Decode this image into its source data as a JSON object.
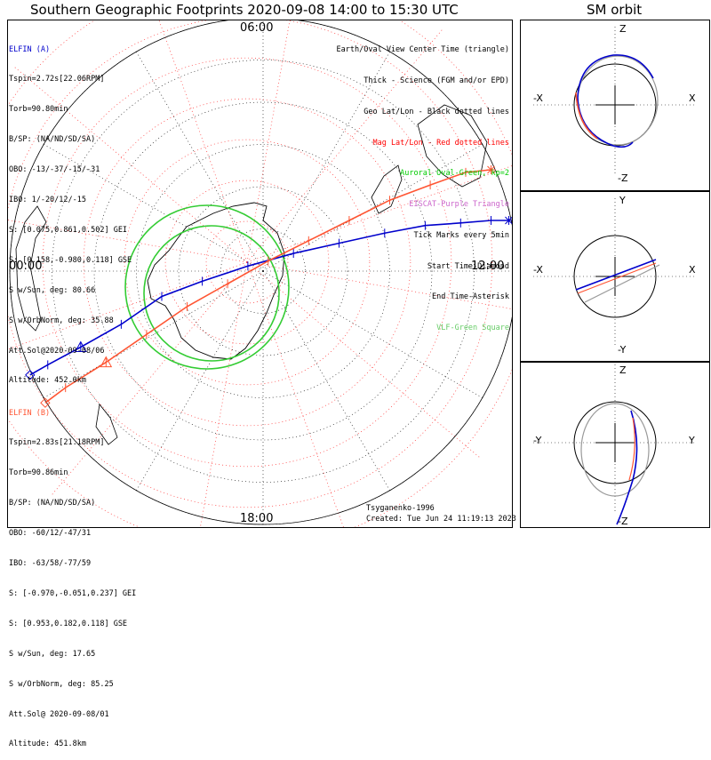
{
  "header": {
    "title": "Southern Geographic Footprints 2020-09-08 14:00 to 15:30 UTC",
    "sm_title": "SM orbit"
  },
  "map": {
    "hour_labels": [
      "06:00",
      "00:00",
      "12:00",
      "18:00"
    ],
    "model": "Tsyganenko-1996",
    "created": "Created: Tue Jun 24 11:19:13 2023"
  },
  "legend": {
    "lines": [
      {
        "text": "Earth/Oval View Center Time (triangle)",
        "color": "#000000"
      },
      {
        "text": "Thick - Science (FGM and/or EPD)",
        "color": "#000000"
      },
      {
        "text": "Geo Lat/Lon - Black dotted lines",
        "color": "#000000"
      },
      {
        "text": "Mag Lat/Lon - Red dotted lines",
        "color": "#ff0000"
      },
      {
        "text": "Auroral Oval-Green, kp=2",
        "color": "#00cc00"
      },
      {
        "text": "EISCAT-Purple Triangle",
        "color": "#cc66cc"
      },
      {
        "text": "Tick Marks every 5min",
        "color": "#000000"
      },
      {
        "text": "Start Time-Diamond",
        "color": "#000000"
      },
      {
        "text": "End Time-Asterisk",
        "color": "#000000"
      },
      {
        "text": "VLF-Green Square",
        "color": "#66cc66"
      }
    ]
  },
  "elfin_a": {
    "name": "ELFIN (A)",
    "color": "#0000cc",
    "lines": [
      "Tspin=2.72s[22.06RPM]",
      "Torb=90.80min",
      "B/SP: (NA/ND/SD/SA)",
      "OBO: -13/-37/-15/-31",
      "IBO: 1/-20/12/-15",
      "S: [0.075,0.861,0.502] GEI",
      "S: [0.158,-0.980,0.118] GSE",
      "S w/Sun, deg: 80.66",
      "S w/OrbNorm, deg: 35.88",
      "Att.Sol@2020-09-08/06",
      "Altitude: 452.0km"
    ]
  },
  "elfin_b": {
    "name": "ELFIN (B)",
    "color": "#ff5533",
    "lines": [
      "Tspin=2.83s[21.18RPM]",
      "Torb=90.86min",
      "B/SP: (NA/ND/SD/SA)",
      "OBO: -60/12/-47/31",
      "IBO: -63/58/-77/59",
      "S: [-0.970,-0.051,0.237] GEI",
      "S: [0.953,0.182,0.118] GSE",
      "S w/Sun, deg: 17.65",
      "S w/OrbNorm, deg: 85.25",
      "Att.Sol@ 2020-09-08/01",
      "Altitude: 451.8km"
    ]
  },
  "sm_panels": [
    {
      "top": "Z",
      "bottom": "-Z",
      "left": "-X",
      "right": "X"
    },
    {
      "top": "Y",
      "bottom": "-Y",
      "left": "-X",
      "right": "X"
    },
    {
      "top": "Z",
      "bottom": "-Z",
      "left": "-Y",
      "right": "Y"
    }
  ],
  "chart_data": [
    {
      "type": "line",
      "title": "Southern Geographic Footprints 2020-09-08 14:00 to 15:30 UTC",
      "projection": "south polar, magnetic local time around the edge",
      "grid": true,
      "series": [
        {
          "name": "ELFIN (A)",
          "color": "#0000cc",
          "x": [
            -0.92,
            -0.85,
            -0.72,
            -0.56,
            -0.4,
            -0.24,
            -0.06,
            0.12,
            0.3,
            0.48,
            0.64,
            0.78,
            0.9,
            0.97
          ],
          "y": [
            0.41,
            0.37,
            0.3,
            0.21,
            0.1,
            0.04,
            -0.02,
            -0.07,
            -0.11,
            -0.15,
            -0.18,
            -0.19,
            -0.2,
            -0.2
          ]
        },
        {
          "name": "ELFIN (B)",
          "color": "#ff5533",
          "x": [
            -0.86,
            -0.78,
            -0.62,
            -0.46,
            -0.3,
            -0.14,
            0.02,
            0.18,
            0.34,
            0.5,
            0.66,
            0.8,
            0.9
          ],
          "y": [
            0.52,
            0.46,
            0.36,
            0.25,
            0.14,
            0.05,
            -0.04,
            -0.12,
            -0.2,
            -0.28,
            -0.34,
            -0.39,
            -0.4
          ]
        }
      ]
    },
    {
      "type": "line",
      "title": "SM orbit",
      "series": [
        {
          "name": "ELFIN (A)",
          "color": "#0000cc"
        },
        {
          "name": "ELFIN (B)",
          "color": "#ff5533"
        }
      ]
    }
  ]
}
